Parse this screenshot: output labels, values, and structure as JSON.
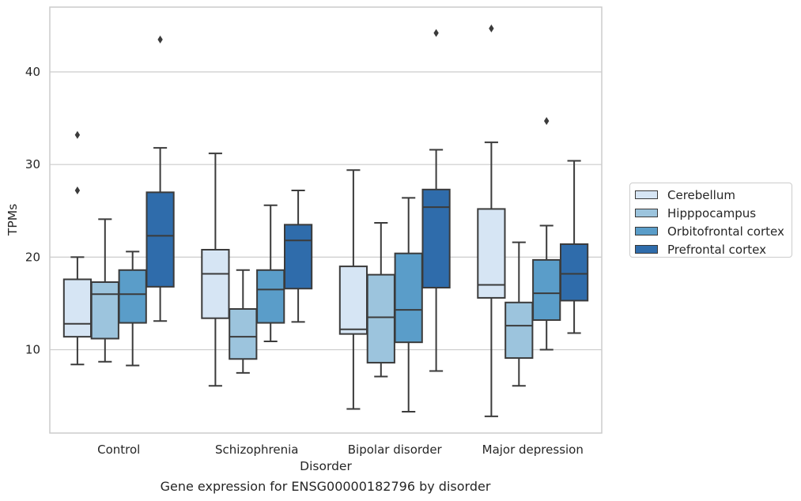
{
  "caption": "Gene expression for ENSG00000182796 by disorder",
  "chart_data": {
    "type": "box",
    "title": "",
    "xlabel": "Disorder",
    "ylabel": "TPMs",
    "ylim": [
      1,
      47
    ],
    "yticks": [
      10,
      20,
      30,
      40
    ],
    "grid": "horizontal",
    "legend_position": "right",
    "categories": [
      "Control",
      "Schizophrenia",
      "Bipolar disorder",
      "Major depression"
    ],
    "series": [
      {
        "name": "Cerebellum",
        "color": "#d6e5f4",
        "boxes": [
          {
            "min": 8.4,
            "q1": 11.4,
            "median": 12.8,
            "q3": 17.6,
            "max": 20.0,
            "outliers": [
              27.2,
              33.2
            ]
          },
          {
            "min": 6.1,
            "q1": 13.4,
            "median": 18.2,
            "q3": 20.8,
            "max": 31.2,
            "outliers": []
          },
          {
            "min": 3.6,
            "q1": 11.7,
            "median": 12.2,
            "q3": 19.0,
            "max": 29.4,
            "outliers": []
          },
          {
            "min": 2.8,
            "q1": 15.6,
            "median": 17.0,
            "q3": 25.2,
            "max": 32.4,
            "outliers": [
              44.7
            ]
          }
        ]
      },
      {
        "name": "Hipppocampus",
        "color": "#9cc4dd",
        "boxes": [
          {
            "min": 8.7,
            "q1": 11.2,
            "median": 16.0,
            "q3": 17.3,
            "max": 24.1,
            "outliers": []
          },
          {
            "min": 7.5,
            "q1": 9.0,
            "median": 11.4,
            "q3": 14.4,
            "max": 18.6,
            "outliers": []
          },
          {
            "min": 7.1,
            "q1": 8.6,
            "median": 13.5,
            "q3": 18.1,
            "max": 23.7,
            "outliers": []
          },
          {
            "min": 6.1,
            "q1": 9.1,
            "median": 12.6,
            "q3": 15.1,
            "max": 21.6,
            "outliers": []
          }
        ]
      },
      {
        "name": "Orbitofrontal cortex",
        "color": "#5a9dc9",
        "boxes": [
          {
            "min": 8.3,
            "q1": 12.9,
            "median": 16.0,
            "q3": 18.6,
            "max": 20.6,
            "outliers": []
          },
          {
            "min": 10.9,
            "q1": 12.9,
            "median": 16.5,
            "q3": 18.6,
            "max": 25.6,
            "outliers": []
          },
          {
            "min": 3.3,
            "q1": 10.8,
            "median": 14.3,
            "q3": 20.4,
            "max": 26.4,
            "outliers": []
          },
          {
            "min": 10.0,
            "q1": 13.2,
            "median": 16.1,
            "q3": 19.7,
            "max": 23.4,
            "outliers": [
              34.7
            ]
          }
        ]
      },
      {
        "name": "Prefrontal cortex",
        "color": "#2f6cab",
        "boxes": [
          {
            "min": 13.1,
            "q1": 16.8,
            "median": 22.3,
            "q3": 27.0,
            "max": 31.8,
            "outliers": [
              43.5
            ]
          },
          {
            "min": 13.0,
            "q1": 16.6,
            "median": 21.8,
            "q3": 23.5,
            "max": 27.2,
            "outliers": []
          },
          {
            "min": 7.7,
            "q1": 16.7,
            "median": 25.4,
            "q3": 27.3,
            "max": 31.6,
            "outliers": [
              44.2
            ]
          },
          {
            "min": 11.8,
            "q1": 15.3,
            "median": 18.2,
            "q3": 21.4,
            "max": 30.4,
            "outliers": []
          }
        ]
      }
    ]
  }
}
